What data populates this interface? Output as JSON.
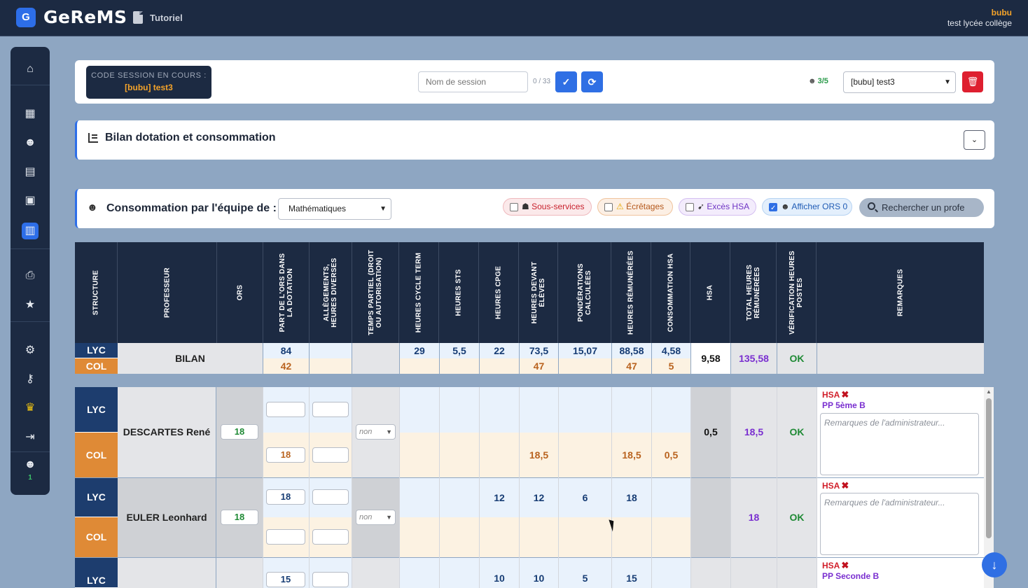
{
  "topbar": {
    "logo_letter": "G",
    "app_title": "GeReMS",
    "tutorial_label": "Tutoriel",
    "user_name": "bubu",
    "user_school": "test lycée collège"
  },
  "sidebar": {
    "connected_count": "1"
  },
  "session": {
    "code_label": "CODE SESSION EN COURS :",
    "code_value": "[bubu] test3",
    "name_placeholder": "Nom de session",
    "name_counter": "0 / 33",
    "users_count": "3/5",
    "selected_session": "[bubu] test3"
  },
  "bilan_panel": {
    "title": "Bilan dotation et consommation"
  },
  "team_panel": {
    "title": "Consommation par l'équipe de :",
    "selected_team": "Mathématiques",
    "filters": [
      {
        "label": "Sous-services",
        "checked": false
      },
      {
        "label": "Écrêtages",
        "checked": false
      },
      {
        "label": "Excès HSA",
        "checked": false
      },
      {
        "label": "Afficher ORS 0",
        "checked": true
      }
    ],
    "search_placeholder": "Rechercher un profe"
  },
  "table": {
    "headers": [
      "STRUCTURE",
      "PROFESSEUR",
      "ORS",
      "PART DE L'ORS DANS LA DOTATION",
      "ALLÈGEMENTS, HEURES DIVERSES",
      "TEMPS PARTIEL (DROIT OU AUTORISATION)",
      "HEURES CYCLE TERM",
      "HEURES STS",
      "HEURES CPGE",
      "HEURES DEVANT ÉLÈVES",
      "PONDÉRATIONS CALCULÉES",
      "HEURES RÉMUNÉRÉES",
      "CONSOMMATION HSA",
      "HSA",
      "TOTAL HEURES RÉMUNÉRÉES",
      "VÉRIFICATION HEURES POSTES",
      "REMARQUES"
    ],
    "bilan": {
      "name": "BILAN",
      "lyc_label": "LYC",
      "col_label": "COL",
      "lyc": {
        "part": "84",
        "cycle": "29",
        "sts": "5,5",
        "cpge": "22",
        "devant": "73,5",
        "pond": "15,07",
        "remu": "88,58",
        "conso": "4,58"
      },
      "col": {
        "part": "42",
        "devant": "47",
        "remu": "47",
        "conso": "5"
      },
      "hsa": "9,58",
      "total": "135,58",
      "verif": "OK"
    },
    "rows": [
      {
        "name": "DESCARTES René",
        "ors": "18",
        "temps_partiel": "non",
        "lyc": {
          "part": "",
          "alleg": "",
          "cycle": "",
          "sts": "",
          "cpge": "",
          "devant": "",
          "pond": "",
          "remu": "",
          "conso": ""
        },
        "col": {
          "part": "18",
          "alleg": "",
          "devant": "18,5",
          "remu": "18,5",
          "conso": "0,5"
        },
        "hsa": "0,5",
        "total": "18,5",
        "verif": "OK",
        "remark_tag": "HSA",
        "remark_pp": "PP 5ème B",
        "remark_placeholder": "Remarques de l'administrateur..."
      },
      {
        "name": "EULER Leonhard",
        "ors": "18",
        "temps_partiel": "non",
        "lyc": {
          "part": "18",
          "alleg": "",
          "cycle": "",
          "sts": "",
          "cpge": "12",
          "devant": "12",
          "pond": "6",
          "remu": "18",
          "conso": ""
        },
        "col": {
          "part": "",
          "alleg": ""
        },
        "hsa": "",
        "total": "18",
        "verif": "OK",
        "remark_tag": "HSA",
        "remark_placeholder": "Remarques de l'administrateur..."
      },
      {
        "lyc": {
          "part": "15",
          "cpge": "10",
          "devant": "10",
          "pond": "5",
          "remu": "15"
        },
        "remark_tag": "HSA",
        "remark_pp": "PP Seconde B"
      }
    ],
    "lyc_label": "LYC",
    "col_label": "COL"
  }
}
